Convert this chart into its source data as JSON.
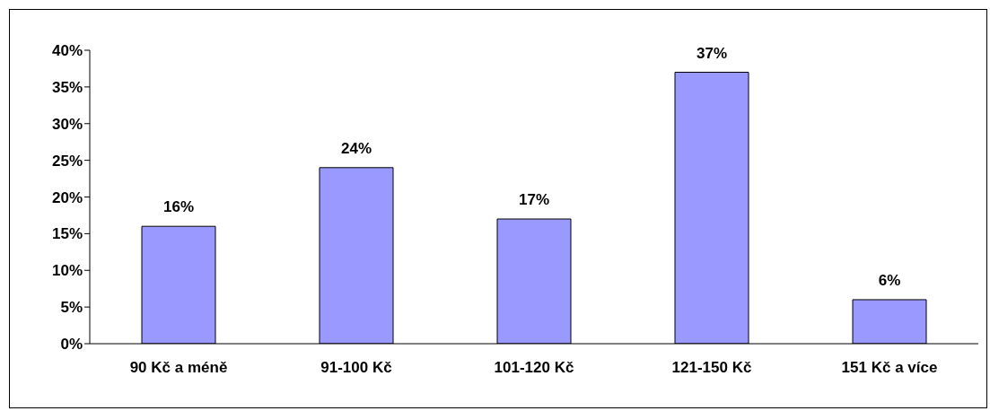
{
  "chart_data": {
    "type": "bar",
    "categories": [
      "90 Kč a méně",
      "91-100 Kč",
      "101-120 Kč",
      "121-150 Kč",
      "151 Kč a více"
    ],
    "values": [
      16,
      24,
      17,
      37,
      6
    ],
    "color": "#9999ff",
    "value_labels": [
      "16%",
      "24%",
      "17%",
      "37%",
      "6%"
    ],
    "ylim": [
      0,
      40
    ],
    "yticks": [
      {
        "value": 0,
        "label": "0%"
      },
      {
        "value": 5,
        "label": "5%"
      },
      {
        "value": 10,
        "label": "10%"
      },
      {
        "value": 15,
        "label": "15%"
      },
      {
        "value": 20,
        "label": "20%"
      },
      {
        "value": 25,
        "label": "25%"
      },
      {
        "value": 30,
        "label": "30%"
      },
      {
        "value": 35,
        "label": "35%"
      },
      {
        "value": 40,
        "label": "40%"
      }
    ],
    "grid": false,
    "legend": false
  }
}
